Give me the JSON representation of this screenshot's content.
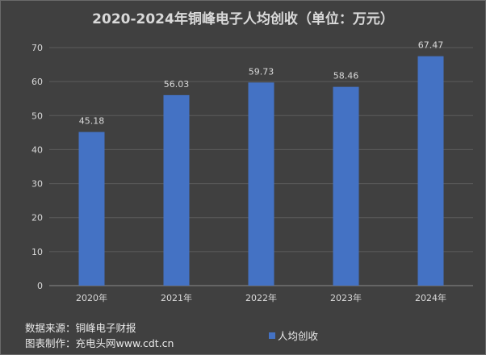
{
  "title": "2020-2024年铜峰电子人均创收（单位：万元）",
  "footer": {
    "source": "数据来源：铜峰电子财报",
    "maker": "图表制作：充电头网www.cdt.cn"
  },
  "colors": {
    "background": "#404040",
    "bar": "#4472c4",
    "grid": "#5c5c5c",
    "text": "#d9d9d9"
  },
  "chart_data": {
    "type": "bar",
    "title": "2020-2024年铜峰电子人均创收（单位：万元）",
    "categories": [
      "2020年",
      "2021年",
      "2022年",
      "2023年",
      "2024年"
    ],
    "series": [
      {
        "name": "人均创收",
        "values": [
          45.18,
          56.03,
          59.73,
          58.46,
          67.47
        ]
      }
    ],
    "data_labels": [
      "45.18",
      "56.03",
      "59.73",
      "58.46",
      "67.47"
    ],
    "yticks": [
      0,
      10,
      20,
      30,
      40,
      50,
      60,
      70
    ],
    "ylim": [
      0,
      70
    ],
    "grid": true,
    "legend_position": "bottom"
  }
}
